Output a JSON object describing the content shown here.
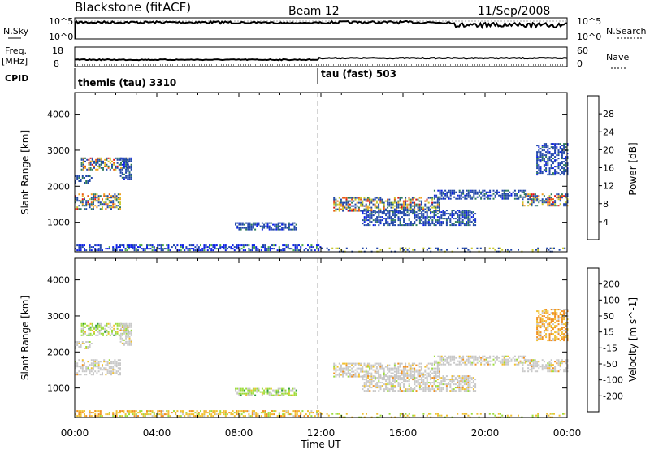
{
  "header": {
    "title": "Blackstone (fitACF)",
    "beam": "Beam 12",
    "date": "11/Sep/2008"
  },
  "strips": {
    "nsky_label": "N.Sky",
    "nsky_ticks": [
      "10^5",
      "10^0"
    ],
    "nsearch_label": "N.Search",
    "nsearch_ticks": [
      "10^5",
      "10^0"
    ],
    "freq_label": "Freq.",
    "freq_unit": "[MHz]",
    "freq_ticks": [
      "18",
      "8"
    ],
    "nave_label": "Nave",
    "nave_ticks": [
      "60",
      "0"
    ],
    "cpid_label": "CPID",
    "cpid_segments": [
      {
        "label": "themis (tau) 3310",
        "start_hour": 0
      },
      {
        "label": "tau (fast) 503",
        "start_hour": 12
      }
    ]
  },
  "time_axis": {
    "label": "Time UT",
    "ticks": [
      "00:00",
      "04:00",
      "08:00",
      "12:00",
      "16:00",
      "20:00",
      "00:00"
    ],
    "tick_hours": [
      0,
      4,
      8,
      12,
      16,
      20,
      24
    ]
  },
  "chart_data": [
    {
      "type": "heatmap",
      "panel": "power",
      "ylabel": "Slant Range [km]",
      "yticks": [
        "1000",
        "2000",
        "3000",
        "4000"
      ],
      "ytick_values": [
        1000,
        2000,
        3000,
        4000
      ],
      "xlim": [
        0,
        24
      ],
      "ylim": [
        180,
        4600
      ],
      "colorbar_label": "Power [dB]",
      "colorbar_ticks": [
        "4",
        "8",
        "12",
        "16",
        "20",
        "24",
        "28"
      ],
      "colorbar_colors": [
        "#0a1ee6",
        "#2046a8",
        "#2e7a5a",
        "#4aa84a",
        "#c8c82a",
        "#f0a020",
        "#e85a10",
        "#dc1414"
      ],
      "regions": [
        {
          "t": [
            0.3,
            2.6
          ],
          "r": [
            2450,
            2800
          ],
          "class": "mixed-high"
        },
        {
          "t": [
            0.0,
            2.2
          ],
          "r": [
            1350,
            1800
          ],
          "class": "mixed-high"
        },
        {
          "t": [
            0.0,
            0.9
          ],
          "r": [
            2100,
            2300
          ],
          "class": "weak"
        },
        {
          "t": [
            2.2,
            2.8
          ],
          "r": [
            2200,
            2800
          ],
          "class": "weak"
        },
        {
          "t": [
            7.8,
            10.8
          ],
          "r": [
            800,
            1000
          ],
          "class": "weak"
        },
        {
          "t": [
            12.6,
            17.8
          ],
          "r": [
            1300,
            1700
          ],
          "class": "mixed-high"
        },
        {
          "t": [
            14.0,
            19.5
          ],
          "r": [
            900,
            1350
          ],
          "class": "weak"
        },
        {
          "t": [
            17.5,
            22.0
          ],
          "r": [
            1650,
            1900
          ],
          "class": "weak"
        },
        {
          "t": [
            21.8,
            24.0
          ],
          "r": [
            1450,
            1800
          ],
          "class": "mixed-high"
        },
        {
          "t": [
            22.5,
            24.0
          ],
          "r": [
            2300,
            3200
          ],
          "class": "weak"
        },
        {
          "t": [
            0.0,
            12.0
          ],
          "r": [
            200,
            380
          ],
          "class": "ground"
        },
        {
          "t": [
            12.0,
            24.0
          ],
          "r": [
            200,
            300
          ],
          "class": "ground-sparse"
        }
      ]
    },
    {
      "type": "heatmap",
      "panel": "velocity",
      "ylabel": "Slant Range [km]",
      "yticks": [
        "1000",
        "2000",
        "3000",
        "4000"
      ],
      "ytick_values": [
        1000,
        2000,
        3000,
        4000
      ],
      "xlim": [
        0,
        24
      ],
      "ylim": [
        180,
        4600
      ],
      "colorbar_label": "Velocity [m s^-1]",
      "colorbar_ticks": [
        "200",
        "100",
        "50",
        "15",
        "-15",
        "-50",
        "-100",
        "-200"
      ],
      "colorbar_colors": [
        "#1432c8",
        "#1e6a3c",
        "#2e9a3a",
        "#9cdc3a",
        "#c8c8c8",
        "#f0c030",
        "#f09020",
        "#f04010",
        "#dc0a0a"
      ],
      "regions": [
        {
          "t": [
            0.3,
            2.6
          ],
          "r": [
            2450,
            2800
          ],
          "class": "vel-green"
        },
        {
          "t": [
            0.0,
            2.2
          ],
          "r": [
            1350,
            1800
          ],
          "class": "vel-gray"
        },
        {
          "t": [
            0.0,
            0.9
          ],
          "r": [
            2100,
            2300
          ],
          "class": "vel-gray"
        },
        {
          "t": [
            2.2,
            2.8
          ],
          "r": [
            2200,
            2800
          ],
          "class": "vel-gray"
        },
        {
          "t": [
            7.8,
            10.8
          ],
          "r": [
            800,
            1000
          ],
          "class": "vel-green"
        },
        {
          "t": [
            12.6,
            17.8
          ],
          "r": [
            1300,
            1700
          ],
          "class": "vel-gray"
        },
        {
          "t": [
            14.0,
            19.5
          ],
          "r": [
            900,
            1350
          ],
          "class": "vel-gray"
        },
        {
          "t": [
            17.5,
            22.0
          ],
          "r": [
            1650,
            1900
          ],
          "class": "vel-gray"
        },
        {
          "t": [
            21.8,
            24.0
          ],
          "r": [
            1450,
            1800
          ],
          "class": "vel-gray"
        },
        {
          "t": [
            22.5,
            24.0
          ],
          "r": [
            2300,
            3200
          ],
          "class": "vel-orange"
        },
        {
          "t": [
            0.0,
            12.0
          ],
          "r": [
            200,
            380
          ],
          "class": "vel-ground"
        },
        {
          "t": [
            12.0,
            24.0
          ],
          "r": [
            200,
            300
          ],
          "class": "vel-ground-sparse"
        }
      ]
    }
  ]
}
